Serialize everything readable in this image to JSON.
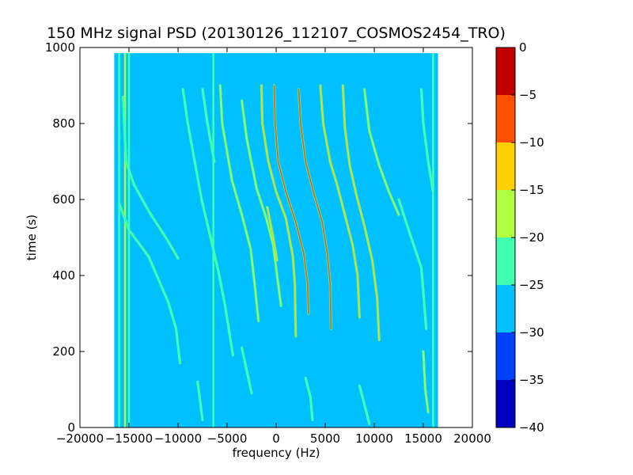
{
  "chart_data": {
    "type": "heatmap",
    "title": "150 MHz signal PSD (20130126_112107_COSMOS2454_TRO)",
    "xlabel": "frequency (Hz)",
    "ylabel": "time (s)",
    "xlim": [
      -20000,
      20000
    ],
    "ylim": [
      0,
      1000
    ],
    "x_ticks": [
      -20000,
      -15000,
      -10000,
      -5000,
      0,
      5000,
      10000,
      15000,
      20000
    ],
    "y_ticks": [
      0,
      200,
      400,
      600,
      800,
      1000
    ],
    "data_extent": {
      "x": [
        -16500,
        16500
      ],
      "y": [
        0,
        985
      ]
    },
    "background_level": -27.5,
    "colorbar": {
      "range": [
        -40,
        0
      ],
      "ticks": [
        0,
        -5,
        -10,
        -15,
        -20,
        -25,
        -30,
        -35,
        -40
      ],
      "bands": [
        {
          "from": -40,
          "to": -35,
          "color": "#0000c0"
        },
        {
          "from": -35,
          "to": -30,
          "color": "#0040ff"
        },
        {
          "from": -30,
          "to": -25,
          "color": "#00c0ff"
        },
        {
          "from": -25,
          "to": -20,
          "color": "#40ffb0"
        },
        {
          "from": -20,
          "to": -15,
          "color": "#b0ff40"
        },
        {
          "from": -15,
          "to": -10,
          "color": "#ffd000"
        },
        {
          "from": -10,
          "to": -5,
          "color": "#ff5000"
        },
        {
          "from": -5,
          "to": 0,
          "color": "#c00000"
        }
      ]
    },
    "static_lines": [
      {
        "x": -16000,
        "y0": 0,
        "y1": 985,
        "level": -22
      },
      {
        "x": -15400,
        "y0": 0,
        "y1": 985,
        "level": -18
      },
      {
        "x": -15000,
        "y0": 0,
        "y1": 985,
        "level": -22
      },
      {
        "x": -6400,
        "y0": 0,
        "y1": 985,
        "level": -22
      },
      {
        "x": 16000,
        "y0": 0,
        "y1": 985,
        "level": -22
      }
    ],
    "traces": [
      {
        "points": [
          [
            -16000,
            590
          ],
          [
            -15000,
            520
          ],
          [
            -13000,
            450
          ],
          [
            -12000,
            390
          ],
          [
            -11000,
            330
          ],
          [
            -10200,
            260
          ],
          [
            -9800,
            170
          ]
        ],
        "level": -20
      },
      {
        "points": [
          [
            -15600,
            870
          ],
          [
            -15300,
            700
          ],
          [
            -14500,
            640
          ],
          [
            -13000,
            570
          ],
          [
            -12000,
            530
          ],
          [
            -11000,
            490
          ],
          [
            -10000,
            445
          ]
        ],
        "level": -20
      },
      {
        "points": [
          [
            -9500,
            890
          ],
          [
            -9000,
            800
          ],
          [
            -7600,
            600
          ],
          [
            -6500,
            480
          ],
          [
            -5800,
            400
          ],
          [
            -5200,
            320
          ],
          [
            -4400,
            190
          ]
        ],
        "level": -22
      },
      {
        "points": [
          [
            -7500,
            890
          ],
          [
            -7000,
            800
          ],
          [
            -6300,
            700
          ]
        ],
        "level": -22
      },
      {
        "points": [
          [
            -5700,
            900
          ],
          [
            -5500,
            800
          ],
          [
            -4500,
            650
          ],
          [
            -3500,
            560
          ],
          [
            -2600,
            470
          ],
          [
            -2200,
            380
          ],
          [
            -1800,
            280
          ]
        ],
        "level": -18
      },
      {
        "points": [
          [
            -3500,
            860
          ],
          [
            -3000,
            760
          ],
          [
            -2000,
            630
          ],
          [
            -1000,
            550
          ],
          [
            -300,
            480
          ],
          [
            100,
            400
          ],
          [
            500,
            320
          ]
        ],
        "level": -17
      },
      {
        "points": [
          [
            -1500,
            900
          ],
          [
            -1400,
            800
          ],
          [
            -800,
            700
          ],
          [
            0,
            620
          ],
          [
            1000,
            550
          ],
          [
            1700,
            450
          ],
          [
            1900,
            380
          ],
          [
            2000,
            240
          ]
        ],
        "level": -13
      },
      {
        "points": [
          [
            -900,
            580
          ],
          [
            -300,
            500
          ],
          [
            100,
            440
          ]
        ],
        "level": -12
      },
      {
        "points": [
          [
            -200,
            900
          ],
          [
            -100,
            800
          ],
          [
            200,
            700
          ],
          [
            1000,
            620
          ],
          [
            2000,
            540
          ],
          [
            2800,
            460
          ],
          [
            3200,
            380
          ],
          [
            3300,
            300
          ]
        ],
        "level": -7
      },
      {
        "points": [
          [
            2300,
            890
          ],
          [
            2500,
            800
          ],
          [
            3000,
            700
          ],
          [
            3800,
            620
          ],
          [
            4700,
            540
          ],
          [
            5200,
            460
          ],
          [
            5500,
            380
          ],
          [
            5600,
            260
          ]
        ],
        "level": -7
      },
      {
        "points": [
          [
            4500,
            900
          ],
          [
            4800,
            800
          ],
          [
            5500,
            700
          ],
          [
            6200,
            640
          ],
          [
            7000,
            560
          ],
          [
            7800,
            480
          ],
          [
            8300,
            400
          ],
          [
            8500,
            290
          ]
        ],
        "level": -10
      },
      {
        "points": [
          [
            6800,
            900
          ],
          [
            7000,
            790
          ],
          [
            7500,
            690
          ],
          [
            8200,
            610
          ],
          [
            9000,
            530
          ],
          [
            9800,
            440
          ],
          [
            10300,
            340
          ],
          [
            10500,
            230
          ]
        ],
        "level": -13
      },
      {
        "points": [
          [
            9000,
            890
          ],
          [
            9500,
            780
          ],
          [
            10500,
            690
          ],
          [
            11500,
            620
          ],
          [
            12500,
            560
          ]
        ],
        "level": -18
      },
      {
        "points": [
          [
            12500,
            600
          ],
          [
            13500,
            520
          ],
          [
            14800,
            420
          ],
          [
            15300,
            260
          ]
        ],
        "level": -20
      },
      {
        "points": [
          [
            14800,
            890
          ],
          [
            15000,
            800
          ],
          [
            15500,
            700
          ],
          [
            16000,
            620
          ]
        ],
        "level": -20
      },
      {
        "points": [
          [
            15000,
            200
          ],
          [
            15200,
            100
          ],
          [
            15500,
            40
          ]
        ],
        "level": -17
      },
      {
        "points": [
          [
            -3500,
            210
          ],
          [
            -3000,
            150
          ],
          [
            -2500,
            90
          ]
        ],
        "level": -22
      },
      {
        "points": [
          [
            -8000,
            120
          ],
          [
            -7800,
            80
          ],
          [
            -7500,
            20
          ]
        ],
        "level": -22
      },
      {
        "points": [
          [
            3000,
            130
          ],
          [
            3500,
            80
          ],
          [
            3700,
            20
          ]
        ],
        "level": -20
      },
      {
        "points": [
          [
            8500,
            110
          ],
          [
            9000,
            60
          ],
          [
            9500,
            10
          ]
        ],
        "level": -22
      }
    ]
  }
}
